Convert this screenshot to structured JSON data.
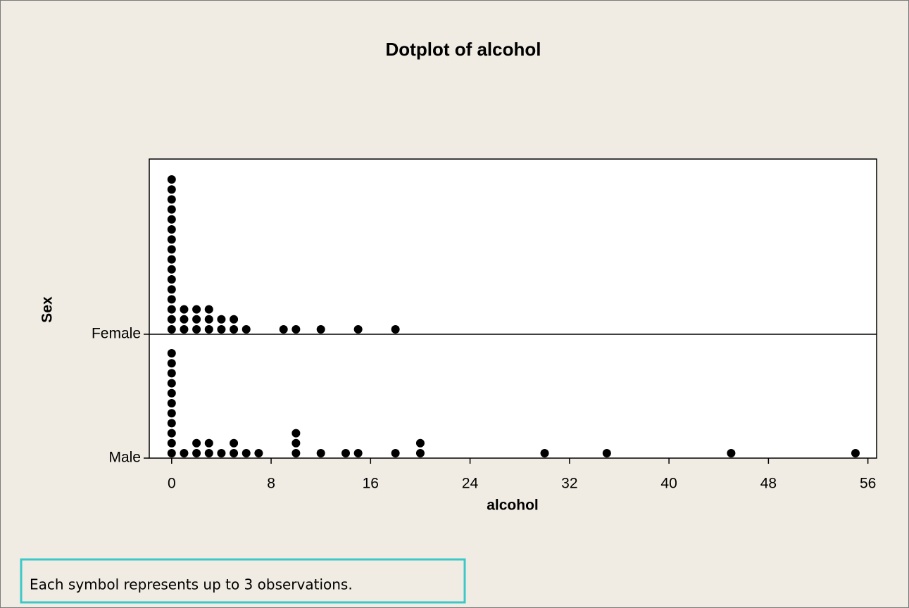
{
  "chart_data": {
    "type": "dotplot",
    "title": "Dotplot of alcohol",
    "x_label": "alcohol",
    "y_label": "Sex",
    "categories": [
      "Male",
      "Female"
    ],
    "series": [
      {
        "name": "Male",
        "color": "#000000",
        "x": [
          0,
          1,
          2,
          3,
          4,
          5,
          6,
          7,
          10,
          12,
          14,
          15,
          18,
          20,
          30,
          35,
          45,
          55
        ],
        "counts": [
          11,
          1,
          2,
          2,
          1,
          2,
          1,
          1,
          3,
          1,
          1,
          1,
          1,
          2,
          1,
          1,
          1,
          1
        ]
      },
      {
        "name": "Female",
        "color": "#000000",
        "x": [
          0,
          1,
          2,
          3,
          4,
          5,
          6,
          9,
          10,
          12,
          15,
          18
        ],
        "counts": [
          16,
          3,
          3,
          3,
          2,
          2,
          1,
          1,
          1,
          1,
          1,
          1
        ]
      }
    ],
    "xlim": [
      -1.8,
      56.7
    ],
    "xticks": [
      0,
      8,
      16,
      24,
      32,
      40,
      48,
      56
    ],
    "footnote": "Each symbol represents up to 3 observations."
  }
}
